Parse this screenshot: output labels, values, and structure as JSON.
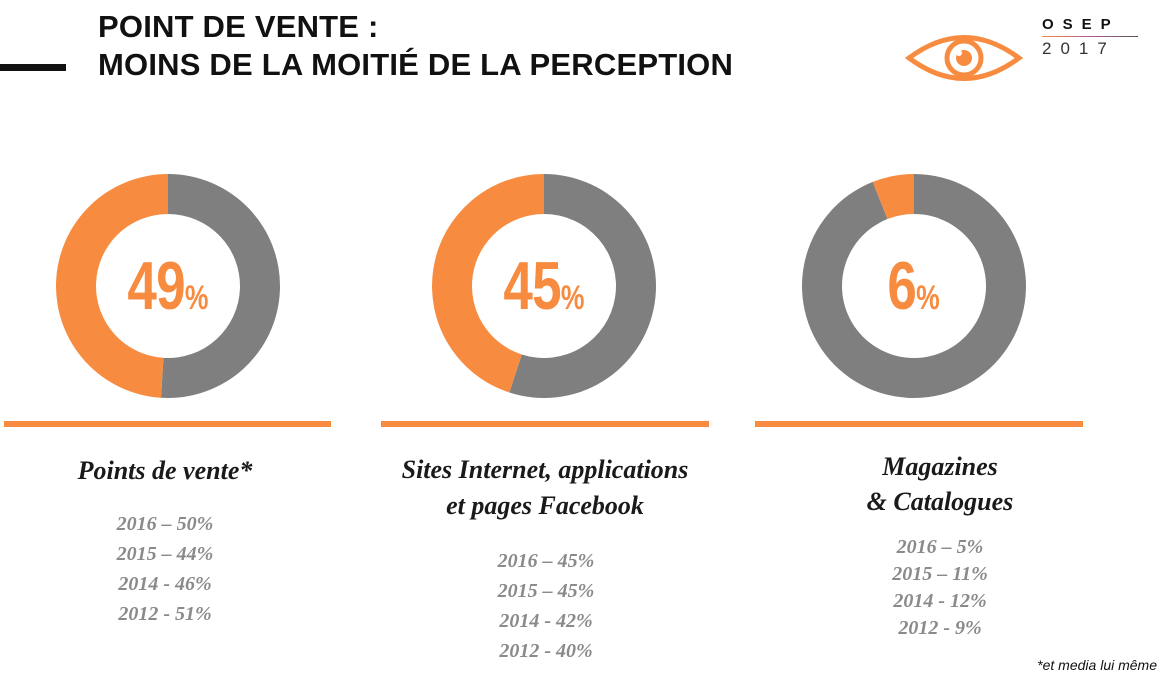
{
  "header": {
    "title_line1": "POINT DE VENTE :",
    "title_line2": "MOINS DE LA MOITIÉ DE LA PERCEPTION"
  },
  "logo": {
    "name": "OSEP",
    "year": "2017",
    "icon": "eye-icon"
  },
  "colors": {
    "accent": "#f78c40",
    "ring_rest": "#7f7f7f",
    "history_text": "#8a8a8a"
  },
  "chart_data": [
    {
      "type": "pie",
      "title": "",
      "value_label": "49",
      "categories": [
        "Points de vente*",
        ""
      ],
      "values": [
        49,
        51
      ],
      "history": [
        "2016 – 50%",
        "2015 – 44%",
        "2014 - 46%",
        "2012 - 51%"
      ],
      "label_lines": [
        "Points de vente*"
      ]
    },
    {
      "type": "pie",
      "title": "",
      "value_label": "45",
      "categories": [
        "Sites Internet, applications et pages Facebook",
        ""
      ],
      "values": [
        45,
        55
      ],
      "history": [
        "2016 – 45%",
        "2015 – 45%",
        "2014 - 42%",
        "2012 - 40%"
      ],
      "label_lines": [
        "Sites Internet, applications",
        "et pages Facebook"
      ]
    },
    {
      "type": "pie",
      "title": "",
      "value_label": "6",
      "categories": [
        "Magazines & Catalogues",
        ""
      ],
      "values": [
        6,
        94
      ],
      "history": [
        "2016 – 5%",
        "2015 – 11%",
        "2014 - 12%",
        "2012 - 9%"
      ],
      "label_lines": [
        "Magazines",
        "& Catalogues"
      ]
    }
  ],
  "percent_sign": "%",
  "footnote": "*et media lui même"
}
